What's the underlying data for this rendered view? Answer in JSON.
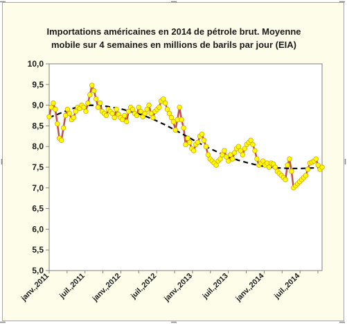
{
  "chart_data": {
    "type": "line",
    "title_lines": [
      "Importations américaines  en 2014 de pétrole brut. Moyenne",
      "mobile sur 4 semaines en millions  de barils par jour (EIA)"
    ],
    "xlabel": "",
    "ylabel": "",
    "ylim": [
      5.0,
      10.0
    ],
    "y_ticks": [
      "5,0",
      "5,5",
      "6,0",
      "6,5",
      "7,0",
      "7,5",
      "8,0",
      "8,5",
      "9,0",
      "9,5",
      "10,0"
    ],
    "x_tick_labels": [
      "janv.,2011",
      "juil.,2011",
      "janv.,2012",
      "juil.,2012",
      "janv.,2013",
      "juil.,2013",
      "janv.,2014",
      "juil.,2014"
    ],
    "x_range_weeks": [
      0,
      198
    ],
    "grid": false,
    "legend": "none",
    "series": [
      {
        "style": "solid-markers",
        "color": "#c0504d",
        "marker_color": "#ffff00",
        "values": [
          8.72,
          8.95,
          9.05,
          8.9,
          8.55,
          8.2,
          8.15,
          8.45,
          8.75,
          8.9,
          8.8,
          8.65,
          8.7,
          8.85,
          8.95,
          8.92,
          9.0,
          8.95,
          8.85,
          9.05,
          9.25,
          9.48,
          9.35,
          9.15,
          8.95,
          9.05,
          8.85,
          8.8,
          8.75,
          8.9,
          8.85,
          8.8,
          8.7,
          8.9,
          8.78,
          8.7,
          8.65,
          8.75,
          8.6,
          8.85,
          8.95,
          8.9,
          8.8,
          8.75,
          8.95,
          8.85,
          8.72,
          8.8,
          8.9,
          9.0,
          8.8,
          8.7,
          8.85,
          8.9,
          8.95,
          9.1,
          9.15,
          9.05,
          8.9,
          8.8,
          8.7,
          8.6,
          8.4,
          8.65,
          8.95,
          8.65,
          8.45,
          8.05,
          8.2,
          8.1,
          7.95,
          7.9,
          8.05,
          8.1,
          8.25,
          8.3,
          8.15,
          8.0,
          7.8,
          7.7,
          7.65,
          7.6,
          7.55,
          7.65,
          7.7,
          7.8,
          7.9,
          7.75,
          7.65,
          7.8,
          7.7,
          7.85,
          7.95,
          8.0,
          7.9,
          7.8,
          7.95,
          8.05,
          8.1,
          8.15,
          8.05,
          7.9,
          7.7,
          7.55,
          7.6,
          7.65,
          7.55,
          7.6,
          7.5,
          7.6,
          7.58,
          7.5,
          7.4,
          7.35,
          7.3,
          7.25,
          7.2,
          7.55,
          7.7,
          7.4,
          7.0,
          7.05,
          7.1,
          7.15,
          7.2,
          7.25,
          7.3,
          7.45,
          7.6,
          7.62,
          7.65,
          7.7,
          7.55,
          7.45,
          7.5
        ]
      },
      {
        "style": "dashed-trend",
        "color": "#000000",
        "values": [
          8.7,
          8.8,
          8.9,
          8.98,
          9.0,
          8.99,
          8.95,
          8.9,
          8.83,
          8.75,
          8.65,
          8.53,
          8.4,
          8.26,
          8.12,
          7.99,
          7.87,
          7.76,
          7.67,
          7.6,
          7.54,
          7.5,
          7.48,
          7.47,
          7.47,
          7.48,
          7.49
        ]
      }
    ]
  }
}
